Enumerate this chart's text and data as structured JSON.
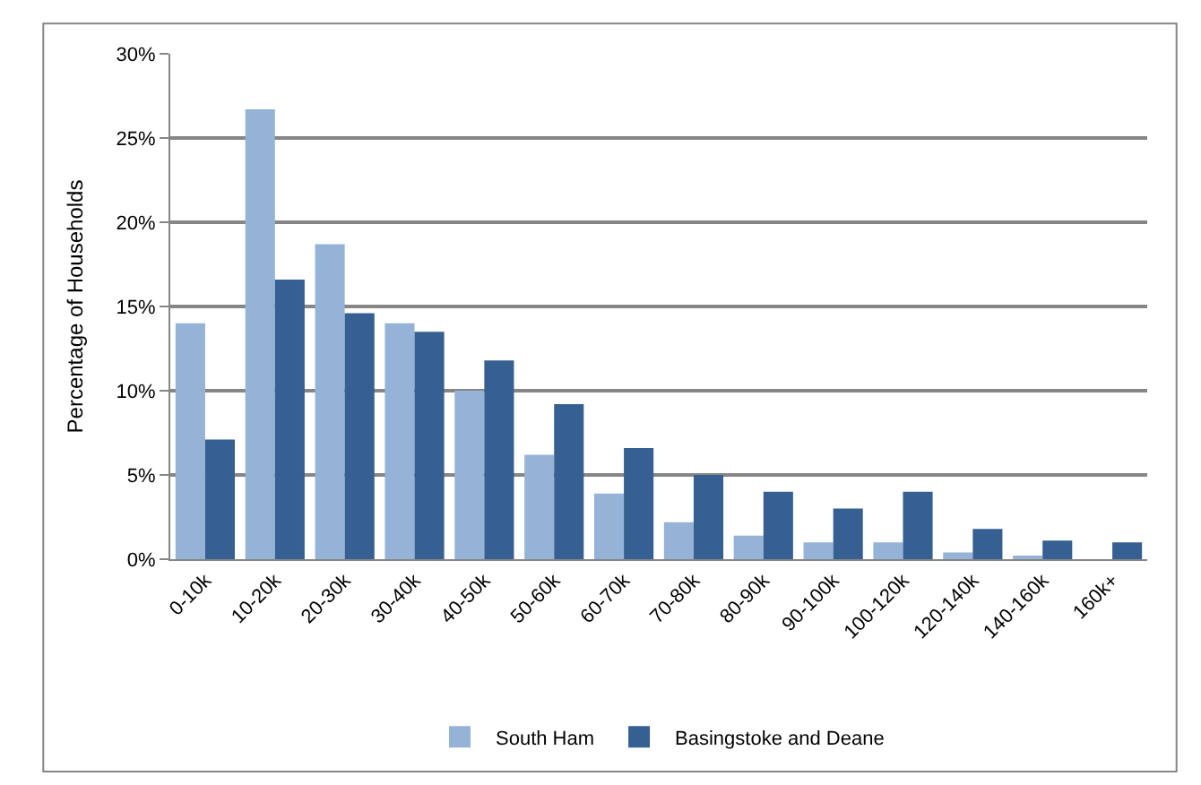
{
  "chart_data": {
    "type": "bar",
    "categories": [
      "0-10k",
      "10-20k",
      "20-30k",
      "30-40k",
      "40-50k",
      "50-60k",
      "60-70k",
      "70-80k",
      "80-90k",
      "90-100k",
      "100-120k",
      "120-140k",
      "140-160k",
      "160k+"
    ],
    "series": [
      {
        "name": "South Ham",
        "color": "#95b3d7",
        "values": [
          14.0,
          26.7,
          18.7,
          14.0,
          10.0,
          6.2,
          3.9,
          2.2,
          1.4,
          1.0,
          1.0,
          0.4,
          0.2,
          0.0
        ]
      },
      {
        "name": "Basingstoke and Deane",
        "color": "#366092",
        "values": [
          7.1,
          16.6,
          14.6,
          13.5,
          11.8,
          9.2,
          6.6,
          5.0,
          4.0,
          3.0,
          4.0,
          1.8,
          1.1,
          1.0
        ]
      }
    ],
    "ylabel": "Percentage of Households",
    "ylim": [
      0,
      30
    ],
    "yticks": [
      {
        "value": 0,
        "label": "0%"
      },
      {
        "value": 5,
        "label": "5%"
      },
      {
        "value": 10,
        "label": "10%"
      },
      {
        "value": 15,
        "label": "15%"
      },
      {
        "value": 20,
        "label": "20%"
      },
      {
        "value": 25,
        "label": "25%"
      },
      {
        "value": 30,
        "label": "30%"
      }
    ],
    "grid": "y",
    "legend": "bottom"
  }
}
